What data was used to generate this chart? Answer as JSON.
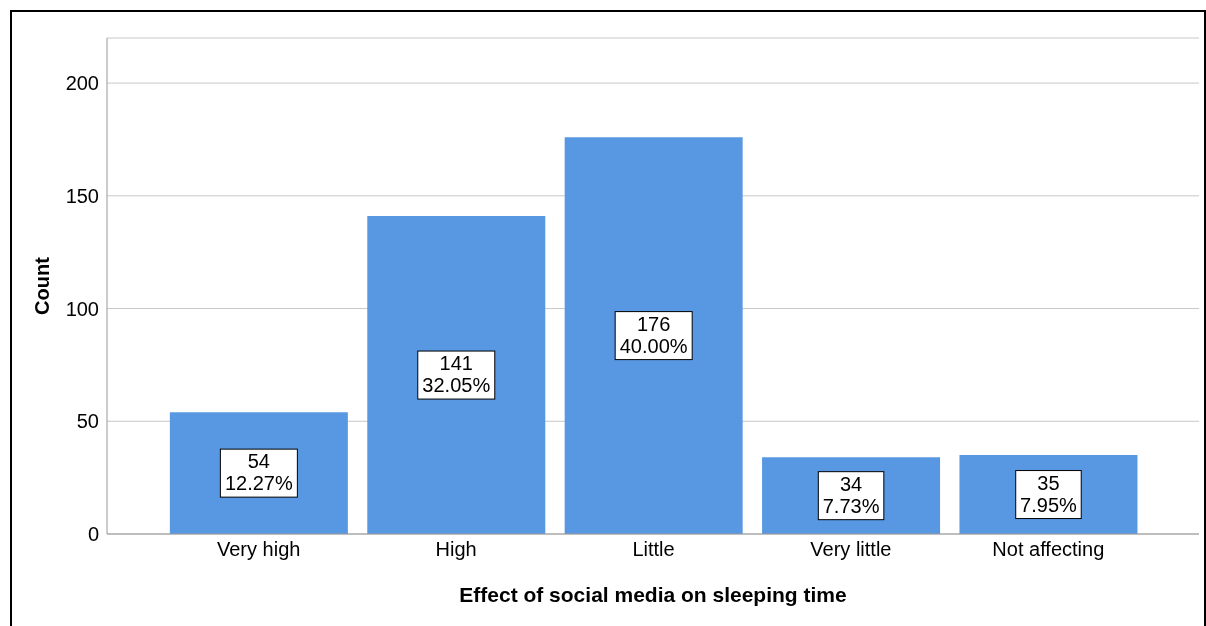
{
  "chart_data": {
    "type": "bar",
    "xlabel": "Effect of social media on sleeping time",
    "ylabel": "Count",
    "categories": [
      "Very high",
      "High",
      "Little",
      "Very little",
      "Not affecting"
    ],
    "values": [
      54,
      141,
      176,
      34,
      35
    ],
    "color": "#5898e2",
    "value_labels": [
      "54\n12.27%",
      "141\n32.05%",
      "176\n40.00%",
      "34\n7.73%",
      "35\n7.95%"
    ],
    "ylim": [
      0,
      220
    ],
    "yticks": [
      0,
      50,
      100,
      150,
      200
    ],
    "grid": "y"
  }
}
